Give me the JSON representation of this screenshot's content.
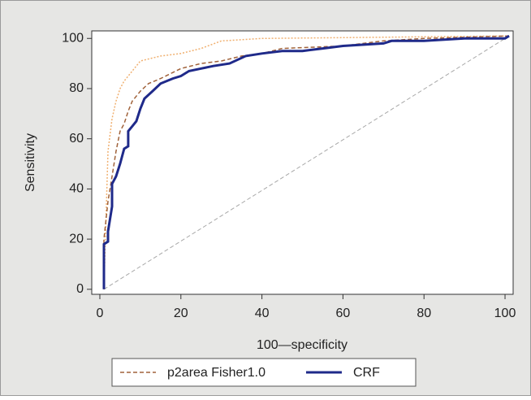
{
  "chart_data": {
    "type": "line",
    "x_label": "100—specificity",
    "y_label": "Sensitivity",
    "xlim": [
      -2,
      102
    ],
    "ylim": [
      -2,
      103
    ],
    "xticks": [
      0,
      20,
      40,
      60,
      80,
      100
    ],
    "yticks": [
      0,
      20,
      40,
      60,
      80,
      100
    ],
    "legend": "bottom",
    "series": [
      {
        "color": "#a8a8a8",
        "line_style": "dashed",
        "line_width": 1,
        "x": [
          1,
          101
        ],
        "values": [
          0,
          101
        ]
      },
      {
        "color": "#f0b070",
        "line_style": "dotted",
        "line_width": 1.5,
        "x": [
          1,
          2,
          3,
          4,
          5,
          6,
          8,
          10,
          15,
          20,
          25,
          30,
          40,
          101
        ],
        "values": [
          0,
          55,
          68,
          75,
          80,
          83,
          87,
          91,
          93,
          94,
          96,
          99,
          100,
          101
        ]
      },
      {
        "name": "p2area Fisher1.0",
        "color": "#a0623a",
        "line_style": "dashed",
        "line_width": 1.5,
        "x": [
          1,
          1,
          2,
          3,
          4,
          5,
          6,
          7,
          8,
          10,
          12,
          15,
          20,
          25,
          30,
          35,
          40,
          45,
          60,
          70,
          80,
          101
        ],
        "values": [
          0,
          20,
          35,
          45,
          55,
          63,
          66,
          71,
          75,
          79,
          82,
          84,
          88,
          90,
          91,
          93,
          94,
          96,
          97,
          99,
          100,
          101
        ]
      },
      {
        "name": "CRF",
        "color": "#1f2a8a",
        "line_style": "solid",
        "line_width": 3,
        "x": [
          1,
          1,
          2,
          2,
          3,
          3,
          4,
          5,
          6,
          7,
          7,
          8,
          9,
          10,
          11,
          13,
          15,
          18,
          20,
          22,
          25,
          28,
          32,
          36,
          40,
          45,
          50,
          55,
          60,
          70,
          72,
          80,
          90,
          100,
          101
        ],
        "values": [
          0,
          18,
          19,
          23,
          33,
          42,
          45,
          50,
          56,
          57,
          63,
          65,
          67,
          72,
          76,
          79,
          82,
          84,
          85,
          87,
          88,
          89,
          90,
          93,
          94,
          95,
          95,
          96,
          97,
          98,
          99,
          99,
          100,
          100,
          101
        ]
      }
    ]
  }
}
